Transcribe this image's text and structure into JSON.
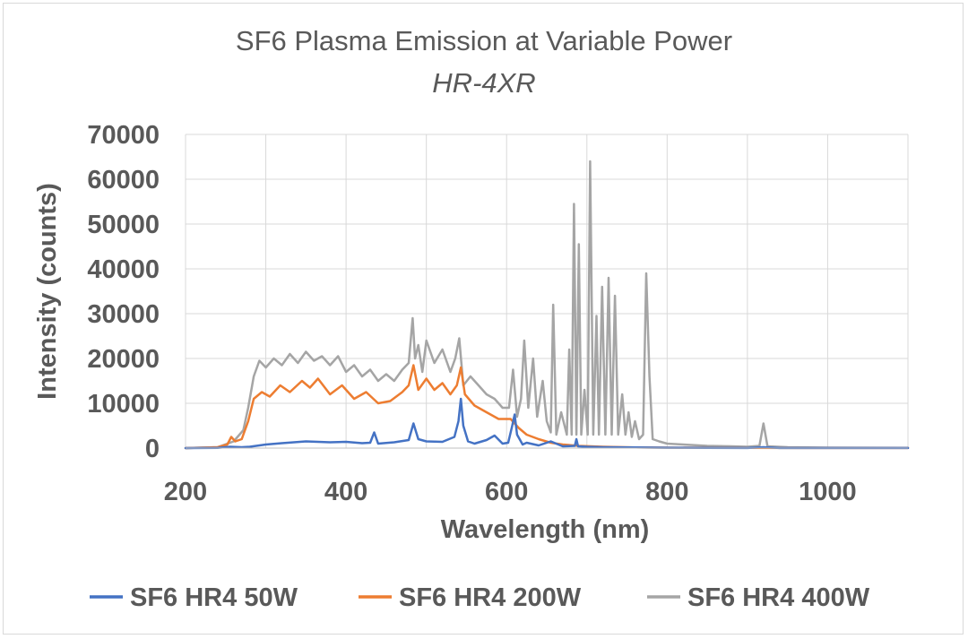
{
  "chart_data": {
    "type": "line",
    "title": "SF6 Plasma Emission at Variable Power",
    "subtitle": "HR-4XR",
    "xlabel": "Wavelength (nm)",
    "ylabel": "Intensity (counts)",
    "xlim": [
      200,
      1100
    ],
    "ylim": [
      0,
      70000
    ],
    "x_ticks": [
      200,
      400,
      600,
      800,
      1000
    ],
    "x_tick_labels": [
      "200",
      "400",
      "600",
      "800",
      "1000"
    ],
    "y_ticks": [
      0,
      10000,
      20000,
      30000,
      40000,
      50000,
      60000,
      70000
    ],
    "y_tick_labels": [
      "0",
      "10000",
      "20000",
      "30000",
      "40000",
      "50000",
      "60000",
      "70000"
    ],
    "grid": "major",
    "legend_position": "bottom",
    "series": [
      {
        "name": "SF6 HR4 50W",
        "color": "#4472c4",
        "x": [
          200,
          240,
          255,
          270,
          280,
          300,
          320,
          350,
          380,
          400,
          420,
          430,
          435,
          440,
          460,
          478,
          484,
          490,
          500,
          520,
          535,
          540,
          543,
          546,
          552,
          560,
          575,
          585,
          595,
          602,
          607,
          610,
          613,
          620,
          625,
          640,
          655,
          670,
          685,
          687,
          689,
          700,
          720,
          760,
          800,
          850,
          900,
          920,
          940,
          1000,
          1100
        ],
        "y": [
          0,
          50,
          300,
          200,
          300,
          800,
          1100,
          1500,
          1300,
          1400,
          1100,
          1200,
          3500,
          1000,
          1300,
          1800,
          5500,
          2000,
          1500,
          1400,
          2500,
          6000,
          11000,
          5000,
          1500,
          1000,
          1800,
          2800,
          1000,
          1200,
          5000,
          7500,
          3000,
          800,
          1200,
          600,
          1500,
          400,
          500,
          2000,
          400,
          300,
          200,
          150,
          80,
          40,
          30,
          200,
          30,
          20,
          10
        ]
      },
      {
        "name": "SF6 HR4 200W",
        "color": "#ed7d31",
        "x": [
          200,
          240,
          252,
          257,
          262,
          270,
          278,
          285,
          295,
          305,
          318,
          330,
          345,
          355,
          365,
          380,
          395,
          410,
          425,
          440,
          455,
          470,
          478,
          484,
          490,
          500,
          510,
          520,
          530,
          538,
          543,
          548,
          560,
          575,
          590,
          605,
          615,
          625,
          640,
          655,
          670,
          690,
          720,
          760,
          800,
          900,
          1000,
          1100
        ],
        "y": [
          0,
          200,
          800,
          2500,
          1500,
          2000,
          6000,
          11000,
          12500,
          11500,
          14000,
          12500,
          15000,
          13500,
          15500,
          12000,
          14000,
          11000,
          12500,
          10000,
          10500,
          12500,
          14000,
          18500,
          13000,
          15500,
          13000,
          14500,
          12000,
          14000,
          18000,
          12000,
          9500,
          8000,
          6500,
          6500,
          4500,
          3000,
          2000,
          1200,
          800,
          500,
          300,
          150,
          100,
          50,
          30,
          20
        ]
      },
      {
        "name": "SF6 HR4 400W",
        "color": "#a5a5a5",
        "x": [
          200,
          240,
          260,
          272,
          278,
          285,
          292,
          300,
          310,
          320,
          330,
          340,
          350,
          360,
          370,
          380,
          390,
          400,
          410,
          420,
          430,
          440,
          450,
          460,
          470,
          478,
          483,
          486,
          490,
          495,
          500,
          510,
          520,
          530,
          536,
          541,
          546,
          555,
          565,
          575,
          585,
          595,
          603,
          608,
          613,
          618,
          622,
          627,
          633,
          638,
          645,
          650,
          655,
          658,
          662,
          668,
          675,
          678,
          681,
          684,
          687,
          690,
          693,
          697,
          701,
          704,
          708,
          712,
          715,
          719,
          723,
          727,
          731,
          735,
          739,
          744,
          748,
          752,
          756,
          760,
          765,
          770,
          774,
          778,
          782,
          790,
          800,
          820,
          850,
          880,
          900,
          915,
          920,
          925,
          950,
          1000,
          1100
        ],
        "y": [
          0,
          200,
          1500,
          4000,
          9000,
          16000,
          19500,
          18000,
          20000,
          18500,
          21000,
          19000,
          21500,
          19500,
          20500,
          18500,
          20500,
          17000,
          18500,
          16000,
          17500,
          15000,
          16500,
          15000,
          17500,
          19000,
          29000,
          20000,
          23000,
          17000,
          24000,
          19000,
          22000,
          17000,
          20000,
          24500,
          14000,
          16000,
          14000,
          12000,
          11000,
          9000,
          9000,
          17500,
          7000,
          11000,
          24000,
          9000,
          20000,
          7000,
          15000,
          6000,
          3500,
          32000,
          3000,
          8000,
          3000,
          22000,
          3000,
          54500,
          3000,
          45500,
          3000,
          13000,
          3000,
          64000,
          3000,
          29500,
          3000,
          36000,
          3000,
          38000,
          3000,
          34000,
          3000,
          12000,
          3000,
          8000,
          2500,
          6000,
          2000,
          3000,
          39000,
          16000,
          2000,
          1500,
          1000,
          800,
          500,
          400,
          300,
          500,
          5500,
          400,
          200,
          100,
          50
        ]
      }
    ]
  }
}
